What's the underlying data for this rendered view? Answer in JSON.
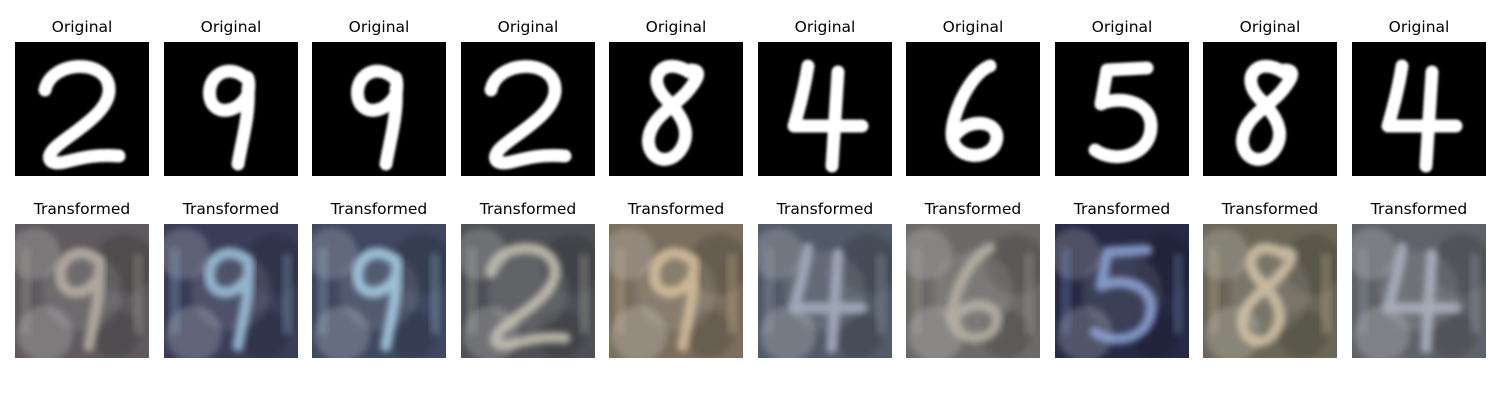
{
  "rows": [
    {
      "caption": "Original",
      "tiles": [
        {
          "digit": "2",
          "style": "mnist"
        },
        {
          "digit": "9",
          "style": "mnist"
        },
        {
          "digit": "9",
          "style": "mnist"
        },
        {
          "digit": "2",
          "style": "mnist"
        },
        {
          "digit": "8",
          "style": "mnist"
        },
        {
          "digit": "4",
          "style": "mnist"
        },
        {
          "digit": "6",
          "style": "mnist"
        },
        {
          "digit": "5",
          "style": "mnist"
        },
        {
          "digit": "8",
          "style": "mnist"
        },
        {
          "digit": "4",
          "style": "mnist"
        }
      ]
    },
    {
      "caption": "Transformed",
      "tiles": [
        {
          "digit": "9",
          "style": "svhn"
        },
        {
          "digit": "9",
          "style": "svhn"
        },
        {
          "digit": "9",
          "style": "svhn"
        },
        {
          "digit": "2",
          "style": "svhn"
        },
        {
          "digit": "9",
          "style": "svhn"
        },
        {
          "digit": "4",
          "style": "svhn"
        },
        {
          "digit": "6",
          "style": "svhn"
        },
        {
          "digit": "5",
          "style": "svhn"
        },
        {
          "digit": "8",
          "style": "svhn"
        },
        {
          "digit": "4",
          "style": "svhn"
        }
      ]
    }
  ],
  "colors": {
    "mnist_background": "#000000",
    "mnist_stroke": "#ffffff",
    "svhn_backgrounds": [
      "#5e5a5d",
      "#3a3d58",
      "#3f4860",
      "#4e5055",
      "#7a6e5e",
      "#525a67",
      "#6c6a68",
      "#262a44",
      "#6a6658",
      "#5f6268"
    ],
    "svhn_strokes": [
      "#b9b2a6",
      "#9fc6df",
      "#a7d2e6",
      "#c7c2b3",
      "#d8c09e",
      "#a8b0c2",
      "#b8b2a6",
      "#8fa5d8",
      "#d4c4a8",
      "#aeb4c2"
    ]
  }
}
